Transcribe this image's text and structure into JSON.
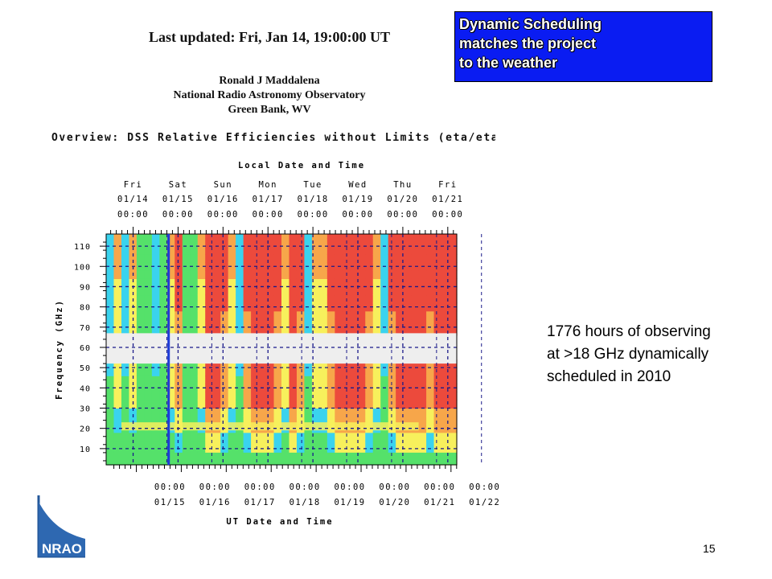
{
  "header": {
    "last_updated": "Last updated: Fri, Jan 14, 19:00:00 UT",
    "author": "Ronald J Maddalena",
    "institution": "National Radio Astronomy Observatory",
    "location": "Green Bank, WV"
  },
  "callout": {
    "lines": [
      "Dynamic Scheduling",
      "matches the project",
      "to the weather"
    ],
    "background": "#0a1cf2"
  },
  "note": {
    "lines": [
      "1776 hours of observing",
      "at >18 GHz dynamically",
      "scheduled in 2010"
    ]
  },
  "footer": {
    "page_number": "15",
    "logo_text": "NRAO"
  },
  "chart_data": {
    "type": "heatmap",
    "title": "Overview: DSS Relative Efficiencies without Limits (eta/eta_mi",
    "top_axis_title": "Local Date and Time",
    "top_axis": {
      "days": [
        "Fri",
        "Sat",
        "Sun",
        "Mon",
        "Tue",
        "Wed",
        "Thu",
        "Fri"
      ],
      "dates": [
        "01/14",
        "01/15",
        "01/16",
        "01/17",
        "01/18",
        "01/19",
        "01/20",
        "01/21"
      ],
      "times": [
        "00:00",
        "00:00",
        "00:00",
        "00:00",
        "00:00",
        "00:00",
        "00:00",
        "00:00"
      ]
    },
    "bottom_axis_title": "UT Date and Time",
    "bottom_axis": {
      "times": [
        "00:00",
        "00:00",
        "00:00",
        "00:00",
        "00:00",
        "00:00",
        "00:00",
        "00:00"
      ],
      "dates": [
        "01/15",
        "01/16",
        "01/17",
        "01/18",
        "01/19",
        "01/20",
        "01/21",
        "01/22"
      ]
    },
    "ylabel": "Frequency (GHz)",
    "yticks": [
      10,
      20,
      30,
      40,
      50,
      60,
      70,
      80,
      90,
      100,
      110
    ],
    "ylim": [
      2,
      116
    ],
    "xlim_days": [
      -0.6,
      7.2
    ],
    "current_time_marker_day": 0.79,
    "gap_band_ghz": [
      52,
      67
    ],
    "colors": {
      "red": "#ec4a3c",
      "orange": "#f7a64a",
      "yellow": "#f7f05c",
      "green": "#55e16a",
      "cyan": "#3ad3ee",
      "gap": "#eeeeee",
      "marker": "#1c3ad8"
    }
  }
}
